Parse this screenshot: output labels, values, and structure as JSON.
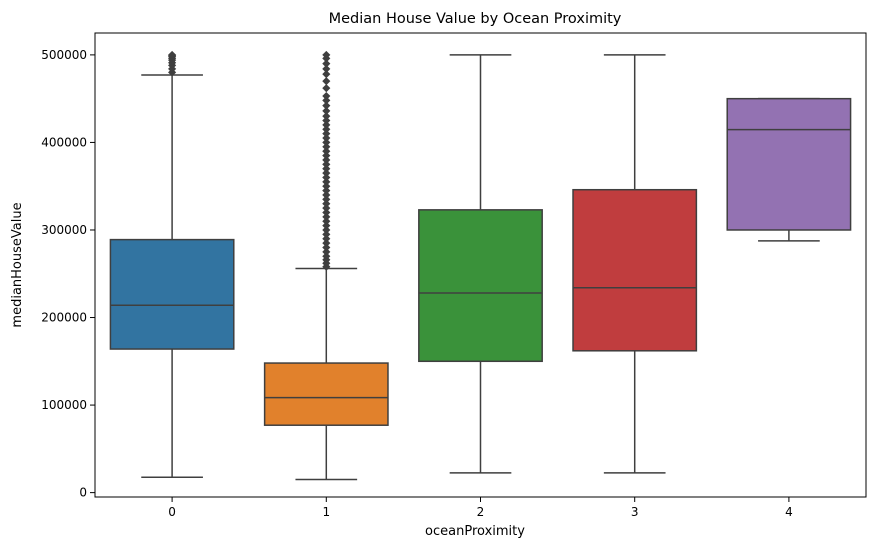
{
  "chart_data": {
    "type": "box",
    "title": "Median House Value by Ocean Proximity",
    "xlabel": "oceanProximity",
    "ylabel": "medianHouseValue",
    "ylim": [
      -5000,
      525000
    ],
    "yticks": [
      0,
      100000,
      200000,
      300000,
      400000,
      500000
    ],
    "ytick_labels": [
      "0",
      "100000",
      "200000",
      "300000",
      "400000",
      "500000"
    ],
    "categories": [
      "0",
      "1",
      "2",
      "3",
      "4"
    ],
    "grid": false,
    "boxes": [
      {
        "category": "0",
        "color": "#3274a1",
        "whisker_low": 17500,
        "q1": 164000,
        "median": 214000,
        "q3": 289000,
        "whisker_high": 477000,
        "outliers": [
          480000,
          484000,
          488000,
          491000,
          494000,
          496000,
          498000,
          499000,
          500001
        ]
      },
      {
        "category": "1",
        "color": "#e1812c",
        "whisker_low": 15000,
        "q1": 77000,
        "median": 108500,
        "q3": 148000,
        "whisker_high": 256000,
        "outliers": [
          258000,
          262000,
          266000,
          270000,
          275000,
          280000,
          285000,
          290000,
          295000,
          300000,
          305000,
          310000,
          315000,
          320000,
          325000,
          330000,
          335000,
          340000,
          345000,
          350000,
          355000,
          360000,
          365000,
          370000,
          375000,
          380000,
          385000,
          390000,
          395000,
          400000,
          405000,
          410000,
          415000,
          420000,
          425000,
          430000,
          436000,
          442000,
          448000,
          453000,
          462000,
          470000,
          478000,
          484000,
          490000,
          496000,
          500001
        ]
      },
      {
        "category": "2",
        "color": "#3a923a",
        "whisker_low": 22500,
        "q1": 150000,
        "median": 228000,
        "q3": 323000,
        "whisker_high": 500001,
        "outliers": []
      },
      {
        "category": "3",
        "color": "#c03d3e",
        "whisker_low": 22500,
        "q1": 162000,
        "median": 234000,
        "q3": 346000,
        "whisker_high": 500001,
        "outliers": []
      },
      {
        "category": "4",
        "color": "#9372b2",
        "whisker_low": 287500,
        "q1": 300000,
        "median": 414700,
        "q3": 450000,
        "whisker_high": 450000,
        "outliers": []
      }
    ]
  }
}
